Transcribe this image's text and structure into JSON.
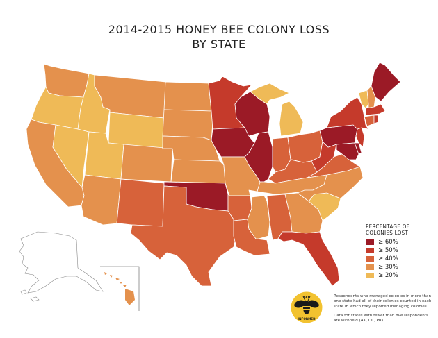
{
  "title": {
    "line1": "2014-2015 HONEY BEE COLONY LOSS",
    "line2": "BY STATE"
  },
  "legend": {
    "title_line1": "PERCENTAGE OF",
    "title_line2": "COLONIES LOST",
    "items": [
      {
        "label": "≥ 60%",
        "color": "#9b1a26"
      },
      {
        "label": "≥ 50%",
        "color": "#c53a2b"
      },
      {
        "label": "≥ 40%",
        "color": "#d7623a"
      },
      {
        "label": "≥ 30%",
        "color": "#e4914d"
      },
      {
        "label": "≥ 20%",
        "color": "#efba57"
      }
    ]
  },
  "notes": {
    "note1": "Respondents who managed colonies in more than one state had all of their colonies counted in each state in which they reported managing colonies.",
    "note2": "Data for states with fewer than five respondents are withheld (AK, DC, PR)."
  },
  "logo": {
    "top_text": "BEE",
    "bottom_text": "INFORMED",
    "icon": "bee-icon"
  },
  "colors": {
    "state_border": "#ffffff",
    "outline_gray": "#888888"
  }
}
